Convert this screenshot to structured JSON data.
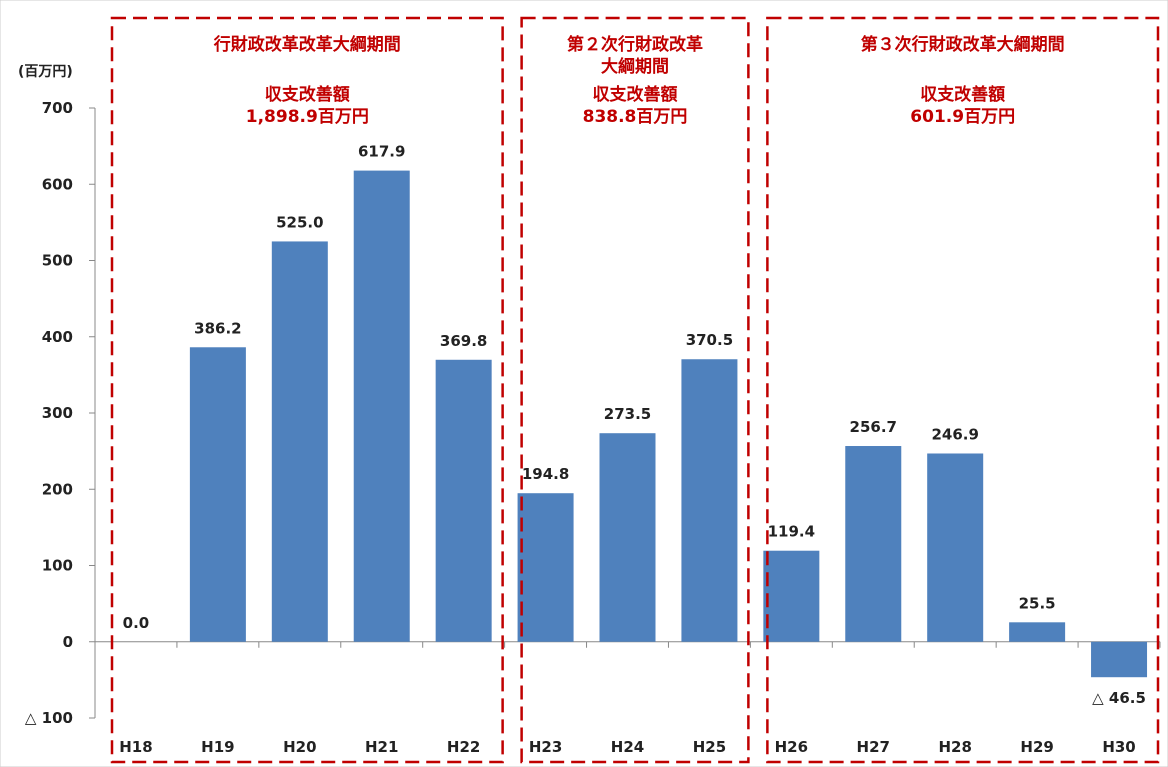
{
  "chart_data": {
    "type": "bar",
    "unit_label": "(百万円)",
    "categories": [
      "H18",
      "H19",
      "H20",
      "H21",
      "H22",
      "H23",
      "H24",
      "H25",
      "H26",
      "H27",
      "H28",
      "H29",
      "H30"
    ],
    "values": [
      0.0,
      386.2,
      525.0,
      617.9,
      369.8,
      194.8,
      273.5,
      370.5,
      119.4,
      256.7,
      246.9,
      25.5,
      -46.5
    ],
    "value_labels": [
      "0.0",
      "386.2",
      "525.0",
      "617.9",
      "369.8",
      "194.8",
      "273.5",
      "370.5",
      "119.4",
      "256.7",
      "246.9",
      "25.5",
      "△ 46.5"
    ],
    "ylim": [
      -100,
      700
    ],
    "yticks": [
      700,
      600,
      500,
      400,
      300,
      200,
      100,
      0,
      -100
    ],
    "ytick_labels": [
      "700",
      "600",
      "500",
      "400",
      "300",
      "200",
      "100",
      "0",
      "△ 100"
    ],
    "grid": false,
    "bar_color": "#4f81bd",
    "periods": [
      {
        "lines": [
          "行財政改革改革大綱期間",
          "",
          "収支改善額",
          "1,898.9百万円"
        ],
        "start": 0,
        "end": 4
      },
      {
        "lines": [
          "第２次行財政改革",
          "大綱期間",
          "収支改善額",
          "838.8百万円"
        ],
        "start": 5,
        "end": 7
      },
      {
        "lines": [
          "第３次行財政改革大綱期間",
          "",
          "収支改善額",
          "601.9百万円"
        ],
        "start": 8,
        "end": 12
      }
    ],
    "period_color": "#c00000"
  }
}
